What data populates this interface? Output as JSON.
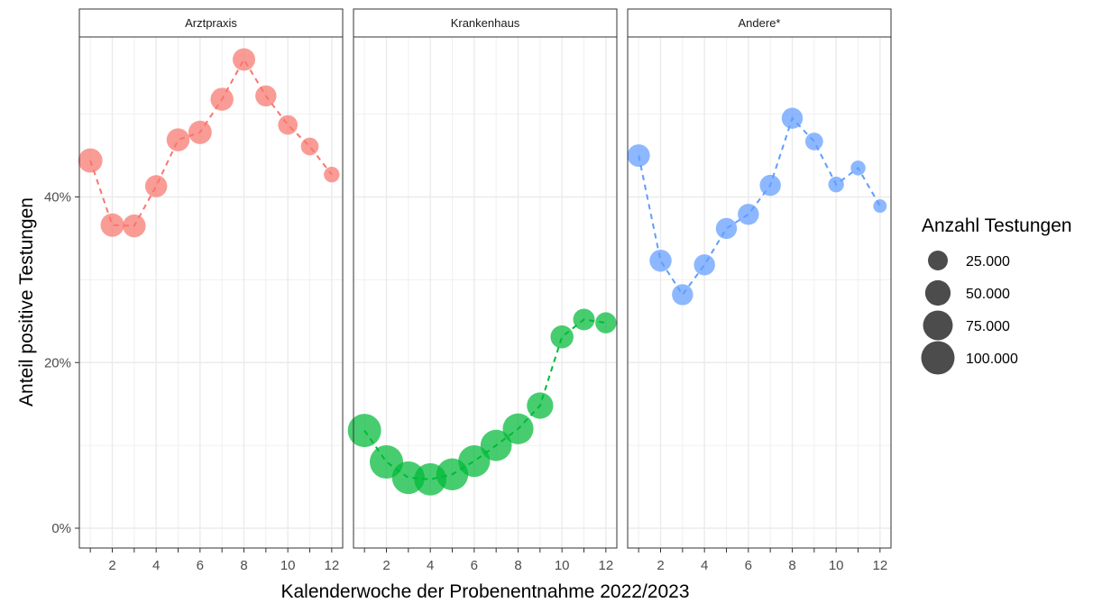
{
  "chart_data": {
    "type": "scatter",
    "xlabel": "Kalenderwoche der Probenentnahme 2022/2023",
    "ylabel": "Anteil positive Testungen",
    "xlim": [
      0.5,
      12.5
    ],
    "ylim": [
      0,
      0.6
    ],
    "x_ticks": [
      2,
      4,
      6,
      8,
      10,
      12
    ],
    "x_tick_labels": [
      "2",
      "4",
      "6",
      "8",
      "10",
      "12"
    ],
    "y_ticks": [
      0,
      0.2,
      0.4
    ],
    "y_tick_labels": [
      "0%",
      "20%",
      "40%"
    ],
    "grid": true,
    "line_style": "dashed",
    "panels": [
      {
        "name": "Arztpraxis",
        "color": "#F8766D",
        "x": [
          1,
          2,
          3,
          4,
          5,
          6,
          7,
          8,
          9,
          10,
          11,
          12
        ],
        "y": [
          0.444,
          0.366,
          0.365,
          0.413,
          0.469,
          0.478,
          0.518,
          0.566,
          0.522,
          0.487,
          0.461,
          0.427
        ],
        "n": [
          44000,
          40000,
          38000,
          34000,
          38000,
          40000,
          38000,
          36000,
          30000,
          24000,
          18000,
          12000
        ]
      },
      {
        "name": "Krankenhaus",
        "color": "#00BA38",
        "x": [
          1,
          2,
          3,
          4,
          5,
          6,
          7,
          8,
          9,
          10,
          11,
          12
        ],
        "y": [
          0.118,
          0.08,
          0.061,
          0.059,
          0.065,
          0.081,
          0.1,
          0.12,
          0.148,
          0.231,
          0.252,
          0.248
        ],
        "n": [
          100000,
          100000,
          95000,
          92000,
          90000,
          88000,
          85000,
          82000,
          55000,
          38000,
          32000,
          30000
        ]
      },
      {
        "name": "Andere*",
        "color": "#619CFF",
        "x": [
          1,
          2,
          3,
          4,
          5,
          6,
          7,
          8,
          9,
          10,
          11,
          12
        ],
        "y": [
          0.45,
          0.323,
          0.282,
          0.318,
          0.362,
          0.379,
          0.414,
          0.495,
          0.467,
          0.415,
          0.435,
          0.389
        ],
        "n": [
          36000,
          34000,
          30000,
          30000,
          30000,
          30000,
          30000,
          30000,
          18000,
          12000,
          10000,
          7000
        ]
      }
    ],
    "legend": {
      "title": "Anzahl Testungen",
      "position": "right",
      "color": "#333333",
      "entries": [
        {
          "label": "25.000",
          "value": 25000
        },
        {
          "label": "50.000",
          "value": 50000
        },
        {
          "label": "75.000",
          "value": 75000
        },
        {
          "label": "100.000",
          "value": 100000
        }
      ]
    }
  }
}
